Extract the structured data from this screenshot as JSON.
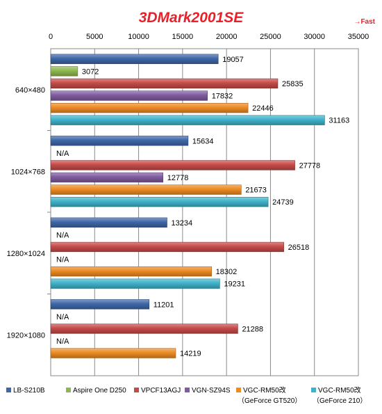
{
  "chart_data": {
    "type": "bar",
    "orientation": "horizontal",
    "title": "3DMark2001SE",
    "note": "→Fast",
    "xlim": [
      0,
      35000
    ],
    "xticks": [
      "0",
      "5000",
      "10000",
      "15000",
      "20000",
      "25000",
      "30000",
      "35000"
    ],
    "grid": true,
    "legend_position": "bottom",
    "categories": [
      "640×480",
      "1024×768",
      "1280×1024",
      "1920×1080"
    ],
    "series": [
      {
        "name": "LB-S210B",
        "sub": "",
        "color": "#3e67a8",
        "values": [
          19057,
          15634,
          13234,
          11201
        ],
        "labels": [
          "19057",
          "15634",
          "13234",
          "11201"
        ]
      },
      {
        "name": "Aspire One D250",
        "sub": "",
        "color": "#8fb74f",
        "values": [
          3072,
          null,
          null,
          null
        ],
        "labels": [
          "3072",
          "N/A",
          "N/A",
          "N/A"
        ]
      },
      {
        "name": "VPCF13AGJ",
        "sub": "",
        "color": "#c44a48",
        "values": [
          25835,
          27778,
          26518,
          21288
        ],
        "labels": [
          "25835",
          "27778",
          "26518",
          "21288"
        ]
      },
      {
        "name": "VGN-SZ94S",
        "sub": "",
        "color": "#7e5b9e",
        "values": [
          17832,
          12778,
          null,
          null
        ],
        "labels": [
          "17832",
          "12778",
          "N/A",
          "N/A"
        ]
      },
      {
        "name": "VGC-RM50改",
        "sub": "（GeForce GT520）",
        "color": "#ec8a23",
        "values": [
          22446,
          21673,
          18302,
          14219
        ],
        "labels": [
          "22446",
          "21673",
          "18302",
          "14219"
        ]
      },
      {
        "name": "VGC-RM50改",
        "sub": "（GeForce 210）",
        "color": "#3eb2c9",
        "values": [
          31163,
          24739,
          19231,
          null
        ],
        "labels": [
          "31163",
          "24739",
          "19231",
          ""
        ]
      }
    ]
  }
}
